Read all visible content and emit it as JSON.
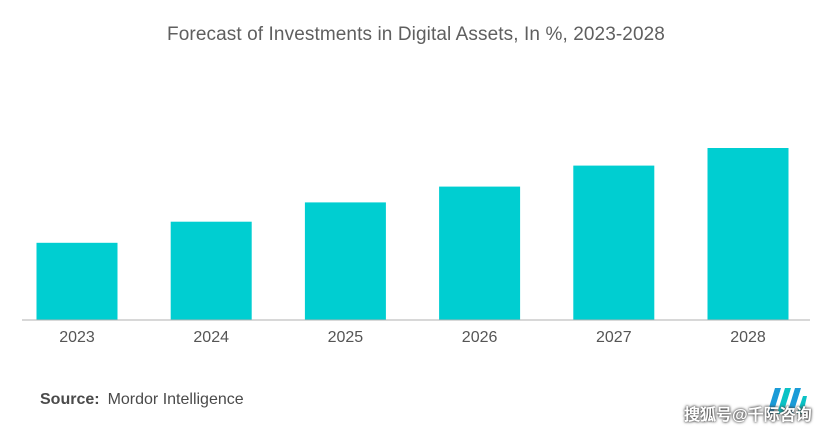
{
  "chart_data": {
    "type": "bar",
    "title": "Forecast of Investments in Digital Assets, In %, 2023-2028",
    "categories": [
      "2023",
      "2024",
      "2025",
      "2026",
      "2027",
      "2028"
    ],
    "values": [
      44,
      56,
      67,
      76,
      88,
      98
    ],
    "ylim": [
      0,
      100
    ],
    "xlabel": "",
    "ylabel": "",
    "grid": false,
    "bar_color": "#00ced1",
    "axis_color": "#b0b0b0"
  },
  "footer": {
    "source_label": "Source:",
    "source_value": "Mordor Intelligence",
    "watermark": "搜狐号@千际咨询"
  },
  "logo": {
    "icon": "mordor-intelligence-logo-icon",
    "colors": [
      "#1a9bd7",
      "#0bc2c5"
    ]
  }
}
